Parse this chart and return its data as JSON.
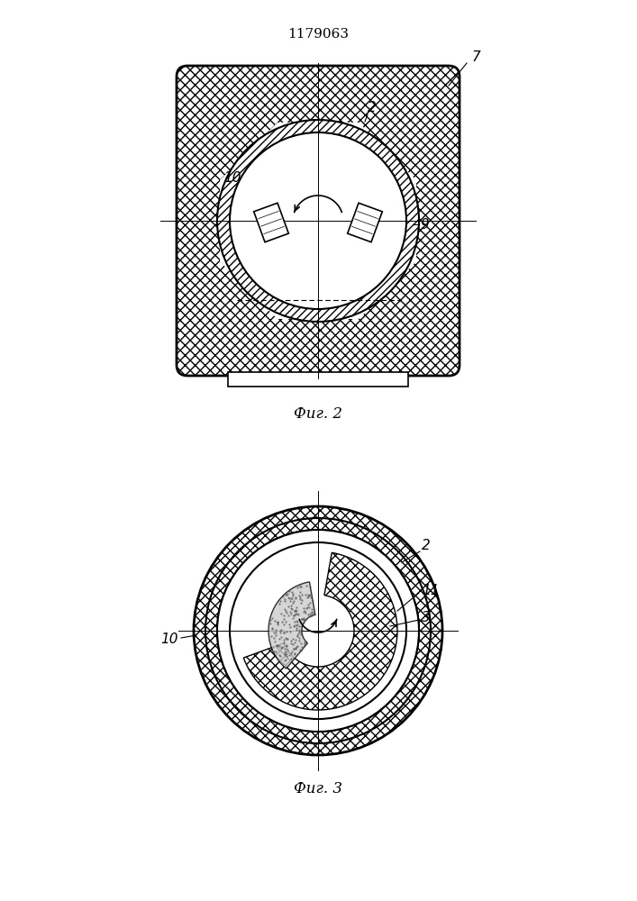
{
  "patent_number": "1179063",
  "fig2_caption": "Фиг. 2",
  "fig3_caption": "Фиг. 3",
  "bg_color": "#ffffff"
}
